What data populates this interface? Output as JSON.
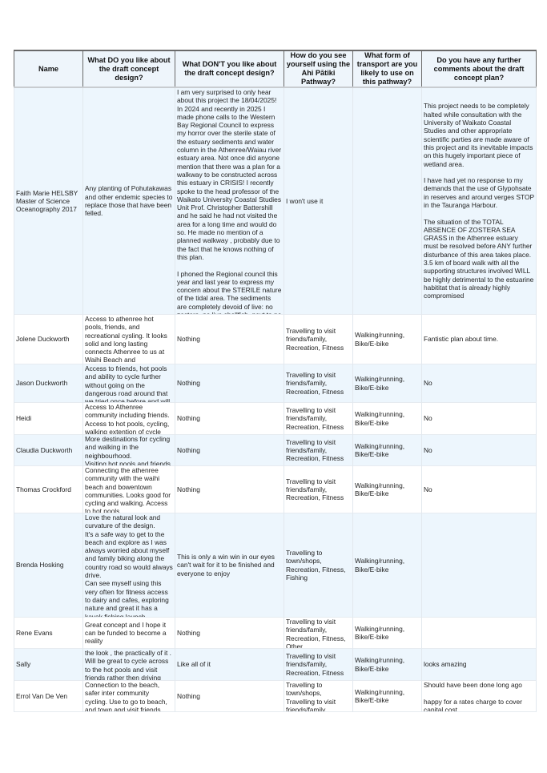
{
  "headers": [
    "Name",
    "What DO you like about the draft concept design?",
    "What DON'T you like about the draft concept design?",
    "How do you see yourself using the Ahi Pātiki Pathway?",
    "What form of transport are you likely to use on this pathway?",
    "Do you have any further comments about the draft concept plan?"
  ],
  "colors": {
    "row_alt": "#edf6fd",
    "header_bg": "#eef5fb",
    "border": "#6a6a6a"
  },
  "rows": [
    {
      "name": "Faith Marie HELSBY\nMaster of Science\nOceanography 2017",
      "like": "Any planting of Pohutakawas and other endemic species to replace those that have been felled.",
      "dislike": "I am very surprised to only hear about this project the 18/04/2025!  In 2024 and recently in 2025 I made phone calls to the Western Bay Regional Council to express my horror over the sterile state of the estuary sediments and water column in the Athenree/Waiau river estuary area.  Not once did anyone mention that there was a plan for a walkway to be constructed across this estuary in CRISIS!  I recently spoke to the head professor of the Waikato University Coastal Studies Unit Prof. Christopher Battershill and he said he had not visited the area for a long time and would do so.  He made no mention of a planned walkway , probably due to the fact that he knows nothing of this plan.\n\nI phoned the Regional council this year and last year to express my concern about the STERILE nature of the tidal area.  The sediments are completely devoid of live: no zostera, no live shellfish, next to no sprat of any kind, , no flounder , no mullet.",
      "usage": "I won't use it",
      "transport": "",
      "comments": "This project needs to be completely halted while consultation with the University of Waikato Coastal Studies and other appropriate scientific parties are made aware of this project and its inevitable impacts on this hugely important piece of wetland area.\n\nI have had yet no response to my demands that the use of Glypohsate in reserves and around verges STOP in the Tauranga Harbour.\n\nThe situation of the TOTAL ABSENCE OF ZOSTERA SEA GRASS in the Athenree estuary must be resolved before ANY further disturbance of this area takes place.  3.5 km of board walk with all the supporting structures involved WILL be highly detrimental to the estuarine habititat that is already highly compromised"
    },
    {
      "name": "Jolene Duckworth",
      "like": "Access to athenree hot pools, friends, and recreational cysling.  It looks solid and long lasting connects Athenree to us at Waihi Beach and Bowentown.",
      "dislike": "Nothing",
      "usage": "Travelling to visit friends/family, Recreation, Fitness",
      "transport": "Walking/running, Bike/E-bike",
      "comments": "Fantistic plan about time."
    },
    {
      "name": "Jason Duckworth",
      "like": "Access to friends, hot pools and ability to cycle further without going on the dangerous road around that we tried once before and will",
      "dislike": "Nothing",
      "usage": "Travelling to visit friends/family, Recreation, Fitness",
      "transport": "Walking/running, Bike/E-bike",
      "comments": "No"
    },
    {
      "name": "Heidi",
      "like": "Access to Athenree community including friends.\nAccess to hot pools, cycling, walking extention of cycle path.",
      "dislike": "Nothing",
      "usage": "Travelling to visit friends/family, Recreation, Fitness",
      "transport": "Walking/running, Bike/E-bike",
      "comments": "No"
    },
    {
      "name": "Claudia Duckworth",
      "like": "More destinations for cycling and walking in the neighbourhood.\nVisiting hot pools and friends.",
      "dislike": "Nothing",
      "usage": "Travelling to visit friends/family, Recreation, Fitness",
      "transport": "Walking/running, Bike/E-bike",
      "comments": "No"
    },
    {
      "name": "Thomas Crockford",
      "like": "Connecting the athenree community with the waihi beach and bowentown communities.  Looks good for cycling and walking.  Access to hot pools.",
      "dislike": "Nothing",
      "usage": "Travelling to visit friends/family, Recreation, Fitness",
      "transport": "Walking/running, Bike/E-bike",
      "comments": "No"
    },
    {
      "name": "Brenda Hosking",
      "like": "Love the natural look and curvature of the design.\nIt's a safe way to get to the beach and explore as I was always worried about myself and family biking along the country road so would always drive.\nCan see myself using this very often for fitness access to dairy and cafes, exploring nature and great it has a kayak fishing launch.",
      "dislike": "This is only a win win in our eyes can't wait for it to be finished and everyone to enjoy",
      "usage": "Travelling to town/shops, Recreation, Fitness, Fishing",
      "transport": "Walking/running, Bike/E-bike",
      "comments": ""
    },
    {
      "name": "Rene Evans",
      "like": "Great concept and I hope it can be funded to become a reality",
      "dislike": "Nothing",
      "usage": "Travelling to visit friends/family, Recreation, Fitness, Other",
      "transport": "Walking/running, Bike/E-bike",
      "comments": ""
    },
    {
      "name": "Sally",
      "like": "the look , the practically of it .  Will be great to cycle across to the hot pools and visit friends rather then driving",
      "dislike": "Like all of it",
      "usage": "Travelling to visit friends/family, Recreation, Fitness",
      "transport": "Walking/running, Bike/E-bike",
      "comments": "looks amazing"
    },
    {
      "name": "Errol Van De Ven",
      "like": "Connection to the beach, safer inter community cycling.  Use to go to beach, and town and visit friends.",
      "dislike": "Nothing",
      "usage": "Travelling to town/shops, Travelling to visit friends/family, Recreation, Fitness",
      "transport": "Walking/running, Bike/E-bike",
      "comments": "Should have been done long ago\n\nhappy for a rates charge to cover capital cost."
    }
  ]
}
